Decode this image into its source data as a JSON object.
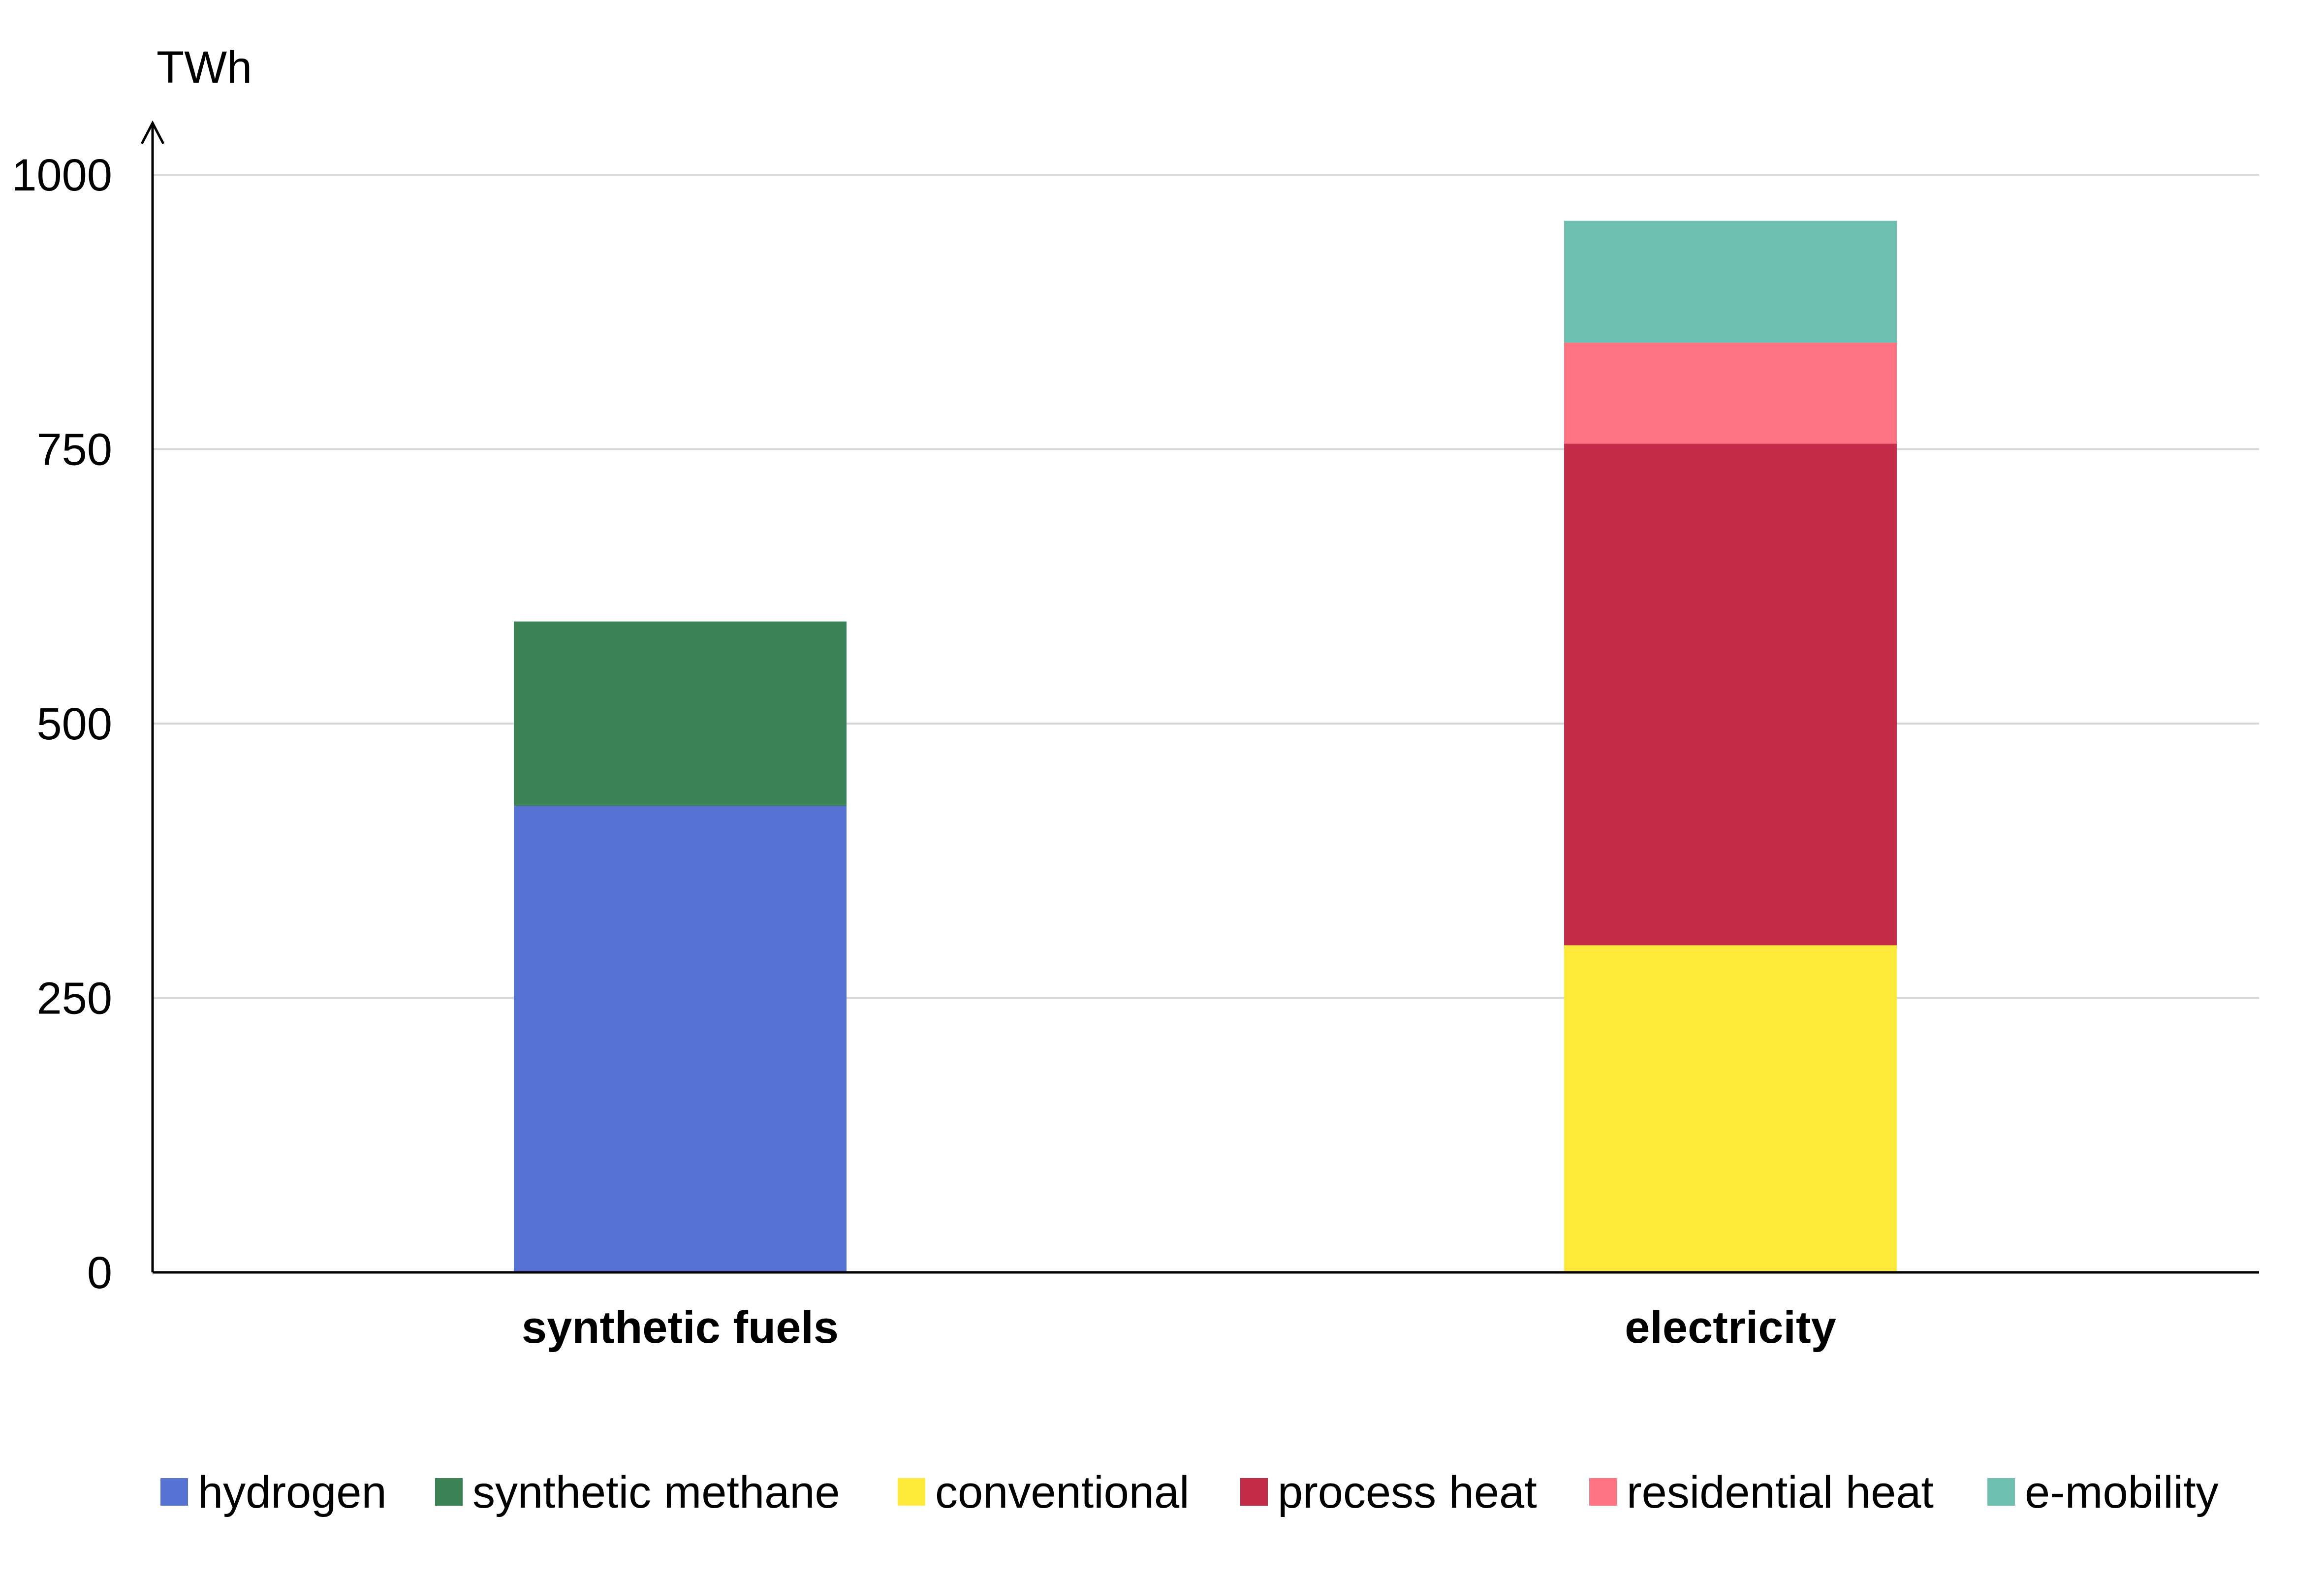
{
  "chart_data": {
    "type": "bar",
    "stacked": true,
    "ylabel": "TWh",
    "ylim": [
      0,
      1000
    ],
    "yticks": [
      "0",
      "250",
      "500",
      "750",
      "1000"
    ],
    "grid": true,
    "legend_position": "bottom",
    "categories": [
      "synthetic fuels",
      "electricity"
    ],
    "series": [
      {
        "name": "hydrogen",
        "color": "#5673D4",
        "values": [
          425,
          0
        ]
      },
      {
        "name": "synthetic methane",
        "color": "#3C8155",
        "values": [
          168,
          0
        ]
      },
      {
        "name": "conventional",
        "color": "#FDE93A",
        "values": [
          0,
          298
        ]
      },
      {
        "name": "process heat",
        "color": "#C32D4A",
        "values": [
          0,
          457
        ]
      },
      {
        "name": "residential heat",
        "color": "#FF7382",
        "values": [
          0,
          92
        ]
      },
      {
        "name": "e-mobility",
        "color": "#6EC1B1",
        "values": [
          0,
          111
        ]
      }
    ]
  }
}
